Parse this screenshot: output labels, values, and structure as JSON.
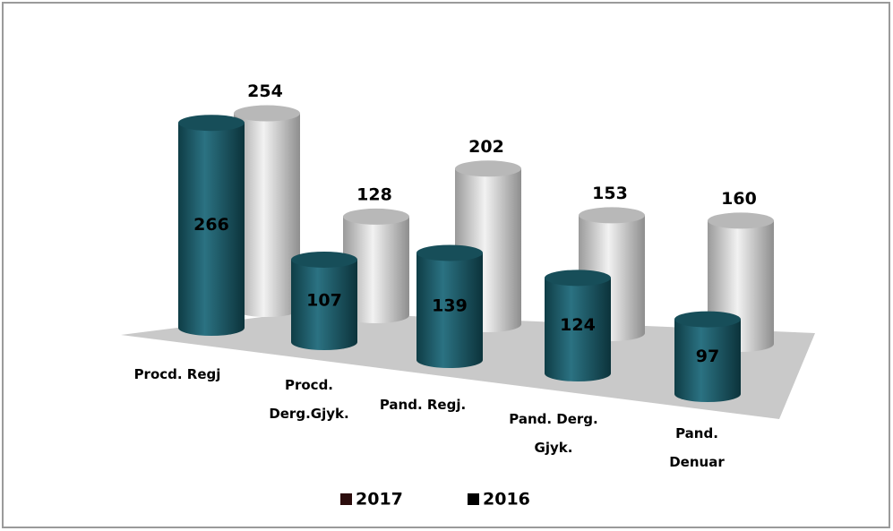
{
  "chart_data": {
    "type": "cylinder",
    "categories": [
      "Procd. Regj",
      "Procd. Derg.Gjyk.",
      "Pand. Regj.",
      "Pand. Derg. Gjyk.",
      "Pand. Denuar"
    ],
    "series": [
      {
        "name": "2017",
        "color": "#1f5c68",
        "legend_color": "#2b0d0d",
        "values": [
          266,
          107,
          139,
          124,
          97
        ]
      },
      {
        "name": "2016",
        "color": "#d6d6d6",
        "legend_color": "#000000",
        "values": [
          254,
          128,
          202,
          153,
          160
        ]
      }
    ]
  }
}
